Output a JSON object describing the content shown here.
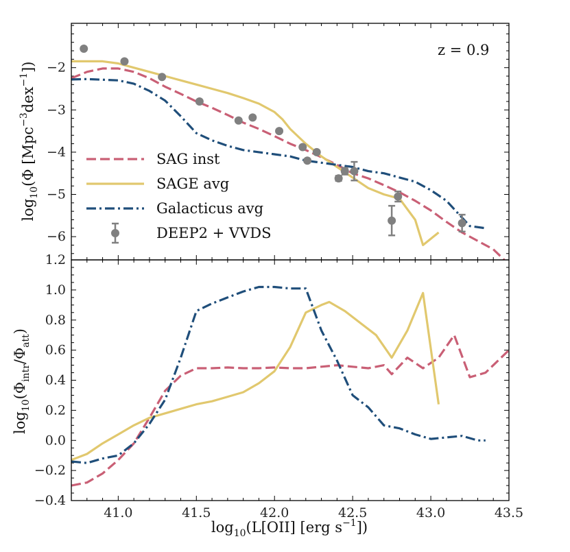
{
  "chart_data": [
    {
      "panel": "top",
      "type": "line",
      "annotation": "z = 0.9",
      "xlim": [
        40.7,
        43.5
      ],
      "ylim": [
        -6.55,
        -0.95
      ],
      "xticks": [
        41.0,
        41.5,
        42.0,
        42.5,
        43.0,
        43.5
      ],
      "yticks": [
        -6,
        -5,
        -4,
        -3,
        -2
      ],
      "ytick_labels": [
        "−6",
        "−5",
        "−4",
        "−3",
        "−2"
      ],
      "ylabel": "log10(Φ [Mpc−3dex−1])",
      "legend_position": "center-left",
      "series": [
        {
          "name": "SAG inst",
          "style": "dashed",
          "color": "#c95f75",
          "x": [
            40.7,
            40.8,
            40.9,
            41.0,
            41.1,
            41.2,
            41.3,
            41.4,
            41.5,
            41.6,
            41.7,
            41.8,
            41.9,
            42.0,
            42.1,
            42.2,
            42.3,
            42.4,
            42.5,
            42.6,
            42.7,
            42.8,
            42.9,
            43.0,
            43.1,
            43.2,
            43.3,
            43.4,
            43.47
          ],
          "y": [
            -2.25,
            -2.1,
            -2.02,
            -2.02,
            -2.1,
            -2.25,
            -2.45,
            -2.62,
            -2.8,
            -2.95,
            -3.12,
            -3.3,
            -3.45,
            -3.62,
            -3.8,
            -3.95,
            -4.12,
            -4.3,
            -4.5,
            -4.62,
            -4.78,
            -4.95,
            -5.15,
            -5.38,
            -5.65,
            -5.9,
            -6.1,
            -6.3,
            -6.55
          ]
        },
        {
          "name": "SAGE avg",
          "style": "solid",
          "color": "#e1c86e",
          "x": [
            40.7,
            40.9,
            41.0,
            41.1,
            41.2,
            41.3,
            41.4,
            41.5,
            41.6,
            41.7,
            41.8,
            41.9,
            42.0,
            42.05,
            42.1,
            42.2,
            42.3,
            42.4,
            42.5,
            42.6,
            42.7,
            42.8,
            42.9,
            42.95,
            43.05
          ],
          "y": [
            -1.85,
            -1.85,
            -1.9,
            -2.0,
            -2.1,
            -2.2,
            -2.3,
            -2.4,
            -2.5,
            -2.6,
            -2.72,
            -2.85,
            -3.05,
            -3.22,
            -3.45,
            -3.8,
            -4.1,
            -4.35,
            -4.6,
            -4.85,
            -5.0,
            -5.1,
            -5.6,
            -6.2,
            -5.9
          ]
        },
        {
          "name": "Galacticus avg",
          "style": "dashdot",
          "color": "#1f4e7a",
          "x": [
            40.7,
            40.8,
            41.0,
            41.1,
            41.2,
            41.3,
            41.4,
            41.5,
            41.6,
            41.7,
            41.8,
            41.9,
            42.0,
            42.1,
            42.2,
            42.3,
            42.4,
            42.5,
            42.6,
            42.7,
            42.8,
            42.9,
            43.0,
            43.1,
            43.15,
            43.2,
            43.25,
            43.35
          ],
          "y": [
            -2.28,
            -2.27,
            -2.3,
            -2.38,
            -2.55,
            -2.78,
            -3.15,
            -3.55,
            -3.72,
            -3.85,
            -3.95,
            -4.0,
            -4.05,
            -4.1,
            -4.2,
            -4.25,
            -4.3,
            -4.35,
            -4.45,
            -4.5,
            -4.6,
            -4.7,
            -4.9,
            -5.15,
            -5.35,
            -5.55,
            -5.75,
            -5.8
          ]
        },
        {
          "name": "DEEP2 + VVDS",
          "style": "points",
          "color": "#808080",
          "x": [
            40.78,
            41.04,
            41.28,
            41.52,
            41.77,
            41.86,
            42.03,
            42.18,
            42.21,
            42.27,
            42.41,
            42.45,
            42.51,
            42.75,
            42.79,
            43.2
          ],
          "y": [
            -1.55,
            -1.85,
            -2.22,
            -2.8,
            -3.25,
            -3.18,
            -3.5,
            -3.88,
            -4.2,
            -4.0,
            -4.62,
            -4.45,
            -4.45,
            -5.62,
            -5.05,
            -5.68
          ],
          "yerr": [
            0,
            0,
            0,
            0,
            0,
            0,
            0,
            0,
            0,
            0,
            0.06,
            0.08,
            0.22,
            0.35,
            0.12,
            0.2
          ]
        }
      ]
    },
    {
      "panel": "bottom",
      "type": "line",
      "xlim": [
        40.7,
        43.5
      ],
      "ylim": [
        -0.4,
        1.2
      ],
      "xticks": [
        41.0,
        41.5,
        42.0,
        42.5,
        43.0,
        43.5
      ],
      "xtick_labels": [
        "41.0",
        "41.5",
        "42.0",
        "42.5",
        "43.0",
        "43.5"
      ],
      "yticks": [
        -0.4,
        -0.2,
        0.0,
        0.2,
        0.4,
        0.6,
        0.8,
        1.0,
        1.2
      ],
      "ytick_labels": [
        "−0.4",
        "−0.2",
        "0.0",
        "0.2",
        "0.4",
        "0.6",
        "0.8",
        "1.0",
        "1.2"
      ],
      "xlabel": "log10(L[OII] [erg s−1])",
      "ylabel": "log10(Φintr/Φatt)",
      "series": [
        {
          "name": "SAG inst",
          "style": "dashed",
          "color": "#c95f75",
          "x": [
            40.7,
            40.8,
            40.9,
            41.0,
            41.1,
            41.2,
            41.3,
            41.4,
            41.5,
            41.6,
            41.7,
            41.8,
            41.9,
            42.0,
            42.1,
            42.2,
            42.3,
            42.4,
            42.5,
            42.6,
            42.7,
            42.75,
            42.85,
            42.95,
            43.05,
            43.15,
            43.25,
            43.35,
            43.5
          ],
          "y": [
            -0.3,
            -0.28,
            -0.22,
            -0.13,
            -0.02,
            0.15,
            0.33,
            0.43,
            0.48,
            0.48,
            0.485,
            0.48,
            0.48,
            0.485,
            0.48,
            0.48,
            0.49,
            0.5,
            0.49,
            0.48,
            0.5,
            0.44,
            0.55,
            0.48,
            0.55,
            0.7,
            0.42,
            0.45,
            0.6
          ]
        },
        {
          "name": "SAGE avg",
          "style": "solid",
          "color": "#e1c86e",
          "x": [
            40.7,
            40.8,
            40.9,
            41.0,
            41.1,
            41.2,
            41.3,
            41.4,
            41.5,
            41.6,
            41.7,
            41.8,
            41.9,
            42.0,
            42.1,
            42.2,
            42.3,
            42.35,
            42.45,
            42.55,
            42.65,
            42.75,
            42.85,
            42.95,
            43.05
          ],
          "y": [
            -0.13,
            -0.09,
            -0.02,
            0.04,
            0.1,
            0.15,
            0.18,
            0.21,
            0.24,
            0.26,
            0.29,
            0.32,
            0.38,
            0.46,
            0.62,
            0.85,
            0.9,
            0.92,
            0.86,
            0.78,
            0.7,
            0.55,
            0.73,
            0.98,
            0.24
          ]
        },
        {
          "name": "Galacticus avg",
          "style": "dashdot",
          "color": "#1f4e7a",
          "x": [
            40.7,
            40.8,
            40.9,
            41.0,
            41.1,
            41.2,
            41.3,
            41.4,
            41.5,
            41.6,
            41.7,
            41.8,
            41.9,
            42.0,
            42.1,
            42.2,
            42.3,
            42.4,
            42.5,
            42.6,
            42.7,
            42.8,
            42.9,
            43.0,
            43.1,
            43.2,
            43.3,
            43.35
          ],
          "y": [
            -0.14,
            -0.15,
            -0.12,
            -0.1,
            -0.02,
            0.11,
            0.27,
            0.55,
            0.86,
            0.91,
            0.95,
            0.99,
            1.02,
            1.02,
            1.01,
            1.01,
            0.73,
            0.53,
            0.3,
            0.22,
            0.1,
            0.08,
            0.04,
            0.01,
            0.02,
            0.03,
            0.0,
            0.0
          ]
        }
      ]
    }
  ],
  "legend": [
    {
      "label": "SAG inst",
      "style": "dashed",
      "color": "#c95f75"
    },
    {
      "label": "SAGE avg",
      "style": "solid",
      "color": "#e1c86e"
    },
    {
      "label": "Galacticus avg",
      "style": "dashdot",
      "color": "#1f4e7a"
    },
    {
      "label": "DEEP2 + VVDS",
      "style": "points",
      "color": "#808080"
    }
  ]
}
